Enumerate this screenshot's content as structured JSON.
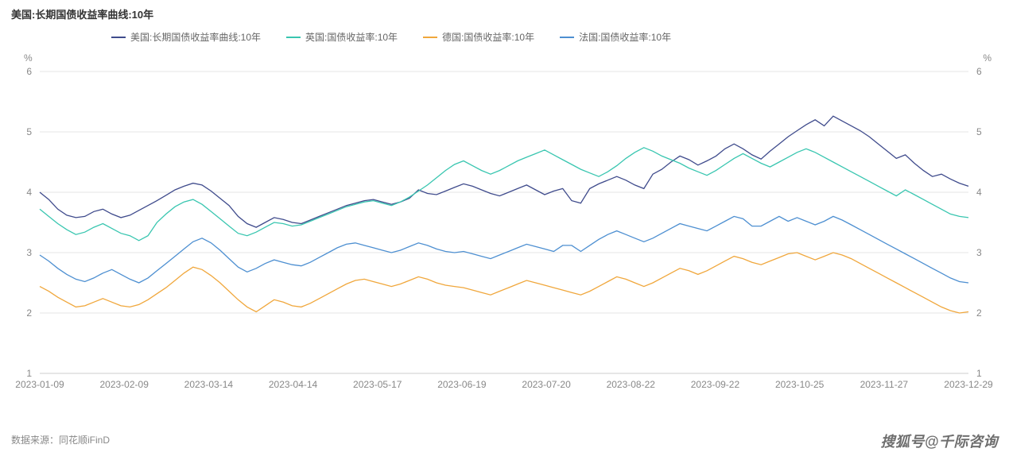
{
  "title": "美国:长期国债收益率曲线:10年",
  "axis_unit": "%",
  "source_label": "数据来源：",
  "source_value": "同花顺iFinD",
  "watermark": "搜狐号@千际咨询",
  "chart": {
    "type": "line",
    "background_color": "#ffffff",
    "grid_color": "#e6e6e6",
    "axis_color": "#cccccc",
    "text_color": "#888888",
    "title_fontsize": 13,
    "label_fontsize": 12,
    "ylim": [
      1,
      6
    ],
    "ytick_step": 1,
    "yticks": [
      1,
      2,
      3,
      4,
      5,
      6
    ],
    "xticks": [
      "2023-01-09",
      "2023-02-09",
      "2023-03-14",
      "2023-04-14",
      "2023-05-17",
      "2023-06-19",
      "2023-07-20",
      "2023-08-22",
      "2023-09-22",
      "2023-10-25",
      "2023-11-27",
      "2023-12-29"
    ],
    "line_width": 1.3,
    "legend_position": "top",
    "series": [
      {
        "name": "美国:长期国债收益率曲线:10年",
        "color": "#3f4b8c",
        "values": [
          4.0,
          3.88,
          3.72,
          3.62,
          3.58,
          3.6,
          3.68,
          3.72,
          3.64,
          3.58,
          3.62,
          3.7,
          3.78,
          3.86,
          3.95,
          4.04,
          4.1,
          4.15,
          4.12,
          4.02,
          3.9,
          3.78,
          3.6,
          3.48,
          3.42,
          3.5,
          3.58,
          3.55,
          3.5,
          3.48,
          3.54,
          3.6,
          3.66,
          3.72,
          3.78,
          3.82,
          3.86,
          3.88,
          3.84,
          3.8,
          3.84,
          3.9,
          4.04,
          3.98,
          3.96,
          4.02,
          4.08,
          4.14,
          4.1,
          4.04,
          3.98,
          3.94,
          4.0,
          4.06,
          4.12,
          4.04,
          3.96,
          4.02,
          4.06,
          3.86,
          3.82,
          4.06,
          4.14,
          4.2,
          4.26,
          4.2,
          4.12,
          4.06,
          4.3,
          4.38,
          4.5,
          4.6,
          4.54,
          4.45,
          4.52,
          4.6,
          4.72,
          4.8,
          4.72,
          4.62,
          4.55,
          4.68,
          4.8,
          4.92,
          5.02,
          5.12,
          5.2,
          5.1,
          5.26,
          5.18,
          5.1,
          5.02,
          4.92,
          4.8,
          4.68,
          4.56,
          4.62,
          4.48,
          4.36,
          4.26,
          4.3,
          4.22,
          4.15,
          4.1
        ]
      },
      {
        "name": "英国:国债收益率:10年",
        "color": "#39c6b0",
        "values": [
          3.72,
          3.6,
          3.48,
          3.38,
          3.3,
          3.34,
          3.42,
          3.48,
          3.4,
          3.32,
          3.28,
          3.2,
          3.28,
          3.5,
          3.64,
          3.76,
          3.84,
          3.88,
          3.8,
          3.68,
          3.56,
          3.44,
          3.32,
          3.28,
          3.34,
          3.42,
          3.5,
          3.48,
          3.44,
          3.46,
          3.52,
          3.58,
          3.64,
          3.7,
          3.76,
          3.8,
          3.84,
          3.86,
          3.82,
          3.78,
          3.84,
          3.92,
          4.02,
          4.12,
          4.24,
          4.36,
          4.46,
          4.52,
          4.44,
          4.36,
          4.3,
          4.36,
          4.44,
          4.52,
          4.58,
          4.64,
          4.7,
          4.62,
          4.54,
          4.46,
          4.38,
          4.32,
          4.26,
          4.34,
          4.44,
          4.56,
          4.66,
          4.74,
          4.68,
          4.6,
          4.54,
          4.48,
          4.4,
          4.34,
          4.28,
          4.36,
          4.46,
          4.56,
          4.64,
          4.56,
          4.48,
          4.42,
          4.5,
          4.58,
          4.66,
          4.72,
          4.66,
          4.58,
          4.5,
          4.42,
          4.34,
          4.26,
          4.18,
          4.1,
          4.02,
          3.94,
          4.04,
          3.96,
          3.88,
          3.8,
          3.72,
          3.64,
          3.6,
          3.58
        ]
      },
      {
        "name": "德国:国债收益率:10年",
        "color": "#f0a73c",
        "values": [
          2.44,
          2.36,
          2.26,
          2.18,
          2.1,
          2.12,
          2.18,
          2.24,
          2.18,
          2.12,
          2.1,
          2.14,
          2.22,
          2.32,
          2.42,
          2.54,
          2.66,
          2.76,
          2.72,
          2.62,
          2.5,
          2.36,
          2.22,
          2.1,
          2.02,
          2.12,
          2.22,
          2.18,
          2.12,
          2.1,
          2.16,
          2.24,
          2.32,
          2.4,
          2.48,
          2.54,
          2.56,
          2.52,
          2.48,
          2.44,
          2.48,
          2.54,
          2.6,
          2.56,
          2.5,
          2.46,
          2.44,
          2.42,
          2.38,
          2.34,
          2.3,
          2.36,
          2.42,
          2.48,
          2.54,
          2.5,
          2.46,
          2.42,
          2.38,
          2.34,
          2.3,
          2.36,
          2.44,
          2.52,
          2.6,
          2.56,
          2.5,
          2.44,
          2.5,
          2.58,
          2.66,
          2.74,
          2.7,
          2.64,
          2.7,
          2.78,
          2.86,
          2.94,
          2.9,
          2.84,
          2.8,
          2.86,
          2.92,
          2.98,
          3.0,
          2.94,
          2.88,
          2.94,
          3.0,
          2.96,
          2.9,
          2.82,
          2.74,
          2.66,
          2.58,
          2.5,
          2.42,
          2.34,
          2.26,
          2.18,
          2.1,
          2.04,
          2.0,
          2.02
        ]
      },
      {
        "name": "法国:国债收益率:10年",
        "color": "#4d8fd1",
        "values": [
          2.96,
          2.86,
          2.74,
          2.64,
          2.56,
          2.52,
          2.58,
          2.66,
          2.72,
          2.64,
          2.56,
          2.5,
          2.58,
          2.7,
          2.82,
          2.94,
          3.06,
          3.18,
          3.24,
          3.16,
          3.04,
          2.9,
          2.76,
          2.68,
          2.74,
          2.82,
          2.88,
          2.84,
          2.8,
          2.78,
          2.84,
          2.92,
          3.0,
          3.08,
          3.14,
          3.16,
          3.12,
          3.08,
          3.04,
          3.0,
          3.04,
          3.1,
          3.16,
          3.12,
          3.06,
          3.02,
          3.0,
          3.02,
          2.98,
          2.94,
          2.9,
          2.96,
          3.02,
          3.08,
          3.14,
          3.1,
          3.06,
          3.02,
          3.12,
          3.12,
          3.02,
          3.12,
          3.22,
          3.3,
          3.36,
          3.3,
          3.24,
          3.18,
          3.24,
          3.32,
          3.4,
          3.48,
          3.44,
          3.4,
          3.36,
          3.44,
          3.52,
          3.6,
          3.56,
          3.44,
          3.44,
          3.52,
          3.6,
          3.52,
          3.58,
          3.52,
          3.46,
          3.52,
          3.6,
          3.54,
          3.46,
          3.38,
          3.3,
          3.22,
          3.14,
          3.06,
          2.98,
          2.9,
          2.82,
          2.74,
          2.66,
          2.58,
          2.52,
          2.5
        ]
      }
    ]
  }
}
